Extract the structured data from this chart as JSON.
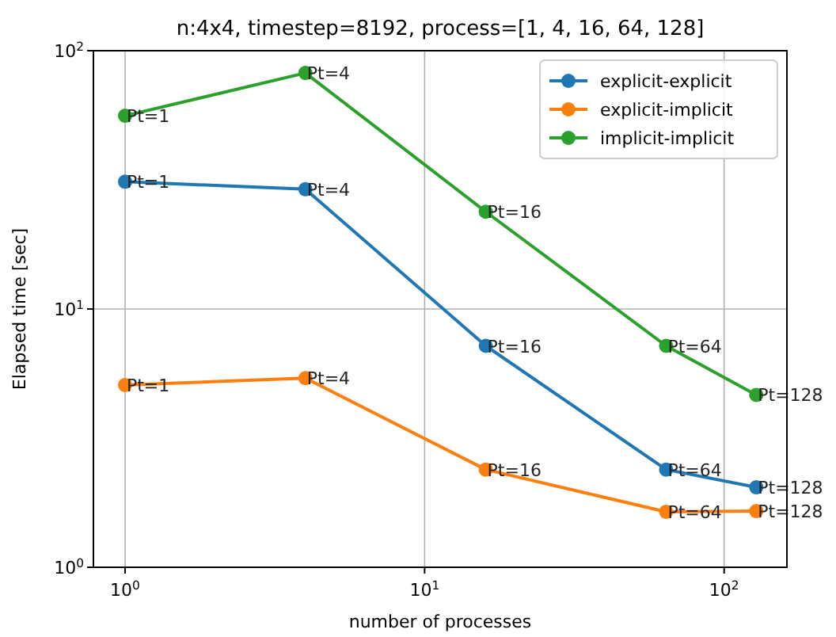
{
  "chart_data": {
    "type": "line",
    "title": "n:4x4, timestep=8192, process=[1, 4, 16, 64, 128]",
    "xlabel": "number of processes",
    "ylabel": "Elapsed time [sec]",
    "x": [
      1,
      4,
      16,
      64,
      128
    ],
    "series": [
      {
        "name": "explicit-explicit",
        "color": "#1f77b4",
        "values": [
          31.1,
          29.1,
          7.2,
          2.39,
          2.04
        ]
      },
      {
        "name": "explicit-implicit",
        "color": "#ff7f0e",
        "values": [
          5.08,
          5.4,
          2.39,
          1.64,
          1.65
        ]
      },
      {
        "name": "implicit-implicit",
        "color": "#2ca02c",
        "values": [
          56,
          82,
          23.8,
          7.2,
          4.65
        ]
      }
    ],
    "annotations": [
      {
        "text": "Pt=1",
        "x": 1,
        "y": 31.1
      },
      {
        "text": "Pt=4",
        "x": 4,
        "y": 29.1
      },
      {
        "text": "Pt=16",
        "x": 16,
        "y": 7.2
      },
      {
        "text": "Pt=64",
        "x": 64,
        "y": 2.39
      },
      {
        "text": "Pt=128",
        "x": 128,
        "y": 2.04
      },
      {
        "text": "Pt=1",
        "x": 1,
        "y": 5.08
      },
      {
        "text": "Pt=4",
        "x": 4,
        "y": 5.4
      },
      {
        "text": "Pt=16",
        "x": 16,
        "y": 2.39
      },
      {
        "text": "Pt=64",
        "x": 64,
        "y": 1.64
      },
      {
        "text": "Pt=128",
        "x": 128,
        "y": 1.65
      },
      {
        "text": "Pt=1",
        "x": 1,
        "y": 56
      },
      {
        "text": "Pt=4",
        "x": 4,
        "y": 82
      },
      {
        "text": "Pt=16",
        "x": 16,
        "y": 23.8
      },
      {
        "text": "Pt=64",
        "x": 64,
        "y": 7.2
      },
      {
        "text": "Pt=128",
        "x": 128,
        "y": 4.65
      }
    ],
    "xlim": [
      0.784,
      162
    ],
    "ylim": [
      1,
      100
    ],
    "xticks": [
      {
        "value": 1,
        "label": "10$^{0}$"
      },
      {
        "value": 10,
        "label": "10$^{1}$"
      },
      {
        "value": 100,
        "label": "10$^{2}$"
      }
    ],
    "yticks": [
      {
        "value": 1,
        "label": "10$^{0}$"
      },
      {
        "value": 10,
        "label": "10$^{1}$"
      },
      {
        "value": 100,
        "label": "10$^{2}$"
      }
    ],
    "log": "xy",
    "grid": true,
    "legend": "top right",
    "marker": "circle",
    "line_style": "solid"
  }
}
